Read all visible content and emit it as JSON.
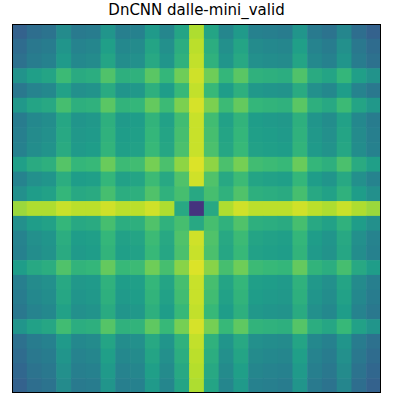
{
  "chart_data": {
    "type": "heatmap",
    "title": "DnCNN dalle-mini_valid",
    "tick_labels": false,
    "color_range": [
      0,
      100
    ],
    "cells": [
      [
        31,
        36,
        38,
        48,
        41,
        42,
        52,
        43,
        44,
        54,
        46,
        58,
        88,
        58,
        46,
        54,
        44,
        43,
        42,
        52,
        41,
        38,
        46,
        36,
        31
      ],
      [
        35,
        40,
        42,
        52,
        45,
        46,
        56,
        47,
        48,
        58,
        50,
        62,
        90,
        62,
        50,
        58,
        48,
        47,
        46,
        56,
        45,
        42,
        50,
        40,
        35
      ],
      [
        37,
        42,
        44,
        54,
        47,
        48,
        58,
        49,
        50,
        60,
        52,
        64,
        91,
        64,
        52,
        60,
        50,
        49,
        48,
        58,
        47,
        44,
        52,
        42,
        37
      ],
      [
        51,
        56,
        58,
        68,
        61,
        62,
        72,
        63,
        64,
        74,
        66,
        78,
        93,
        78,
        66,
        74,
        64,
        63,
        62,
        72,
        61,
        58,
        66,
        56,
        51
      ],
      [
        40,
        45,
        47,
        57,
        50,
        51,
        61,
        52,
        53,
        63,
        55,
        67,
        91,
        67,
        55,
        63,
        53,
        52,
        51,
        61,
        50,
        47,
        55,
        45,
        40
      ],
      [
        53,
        58,
        60,
        70,
        63,
        64,
        74,
        65,
        66,
        76,
        68,
        80,
        94,
        80,
        68,
        76,
        66,
        65,
        64,
        74,
        63,
        60,
        68,
        58,
        53
      ],
      [
        42,
        47,
        49,
        59,
        52,
        53,
        63,
        54,
        55,
        65,
        57,
        69,
        92,
        69,
        57,
        65,
        55,
        54,
        53,
        63,
        52,
        49,
        57,
        47,
        42
      ],
      [
        43,
        48,
        50,
        60,
        53,
        54,
        64,
        55,
        56,
        66,
        58,
        70,
        92,
        70,
        58,
        66,
        56,
        55,
        54,
        64,
        53,
        50,
        58,
        48,
        43
      ],
      [
        44,
        49,
        51,
        61,
        54,
        55,
        65,
        56,
        57,
        67,
        59,
        71,
        92,
        71,
        59,
        67,
        57,
        56,
        55,
        65,
        54,
        51,
        59,
        49,
        44
      ],
      [
        56,
        61,
        63,
        73,
        66,
        67,
        77,
        68,
        69,
        79,
        71,
        83,
        95,
        83,
        71,
        79,
        69,
        68,
        67,
        77,
        66,
        63,
        71,
        61,
        56
      ],
      [
        45,
        50,
        52,
        62,
        55,
        56,
        66,
        57,
        58,
        68,
        60,
        72,
        93,
        72,
        60,
        68,
        58,
        57,
        56,
        66,
        55,
        52,
        60,
        50,
        45
      ],
      [
        50,
        55,
        57,
        66,
        60,
        61,
        70,
        62,
        63,
        72,
        64,
        70,
        60,
        70,
        64,
        72,
        63,
        62,
        61,
        70,
        60,
        57,
        64,
        55,
        50
      ],
      [
        85,
        88,
        88,
        92,
        90,
        90,
        93,
        90,
        90,
        93,
        88,
        60,
        15,
        60,
        88,
        93,
        90,
        90,
        90,
        93,
        90,
        88,
        92,
        88,
        85
      ],
      [
        50,
        55,
        57,
        66,
        60,
        61,
        70,
        62,
        63,
        72,
        64,
        70,
        60,
        70,
        64,
        72,
        63,
        62,
        61,
        70,
        60,
        57,
        64,
        55,
        50
      ],
      [
        45,
        50,
        52,
        62,
        55,
        56,
        66,
        57,
        58,
        68,
        60,
        72,
        93,
        72,
        60,
        68,
        58,
        57,
        56,
        66,
        55,
        52,
        60,
        50,
        45
      ],
      [
        44,
        49,
        51,
        61,
        54,
        55,
        65,
        56,
        57,
        67,
        59,
        71,
        92,
        71,
        59,
        67,
        57,
        56,
        55,
        65,
        54,
        51,
        59,
        49,
        44
      ],
      [
        55,
        60,
        62,
        72,
        65,
        66,
        76,
        67,
        68,
        78,
        70,
        82,
        95,
        82,
        70,
        78,
        68,
        67,
        66,
        76,
        65,
        62,
        70,
        60,
        55
      ],
      [
        43,
        48,
        50,
        60,
        53,
        54,
        64,
        55,
        56,
        66,
        58,
        70,
        92,
        70,
        58,
        66,
        56,
        55,
        54,
        64,
        53,
        50,
        58,
        48,
        43
      ],
      [
        42,
        47,
        49,
        59,
        52,
        53,
        63,
        54,
        55,
        65,
        57,
        69,
        92,
        69,
        57,
        65,
        55,
        54,
        53,
        63,
        52,
        49,
        57,
        47,
        42
      ],
      [
        40,
        45,
        47,
        57,
        50,
        51,
        61,
        52,
        53,
        63,
        55,
        67,
        91,
        67,
        55,
        63,
        53,
        52,
        51,
        61,
        50,
        47,
        55,
        45,
        40
      ],
      [
        52,
        57,
        59,
        69,
        62,
        63,
        73,
        64,
        65,
        75,
        67,
        79,
        94,
        79,
        67,
        75,
        65,
        64,
        63,
        73,
        62,
        59,
        67,
        57,
        52
      ],
      [
        37,
        42,
        44,
        54,
        47,
        48,
        58,
        49,
        50,
        60,
        52,
        64,
        91,
        64,
        52,
        60,
        50,
        49,
        48,
        58,
        47,
        44,
        52,
        42,
        37
      ],
      [
        35,
        40,
        42,
        52,
        45,
        46,
        56,
        47,
        48,
        58,
        50,
        62,
        90,
        62,
        50,
        58,
        48,
        47,
        46,
        56,
        45,
        42,
        50,
        40,
        35
      ],
      [
        33,
        38,
        40,
        50,
        43,
        44,
        54,
        45,
        46,
        56,
        48,
        60,
        89,
        60,
        48,
        56,
        46,
        45,
        44,
        54,
        43,
        40,
        48,
        38,
        33
      ],
      [
        31,
        36,
        38,
        48,
        41,
        42,
        52,
        43,
        44,
        54,
        46,
        58,
        88,
        58,
        46,
        54,
        44,
        43,
        42,
        52,
        41,
        38,
        46,
        36,
        31
      ]
    ]
  }
}
